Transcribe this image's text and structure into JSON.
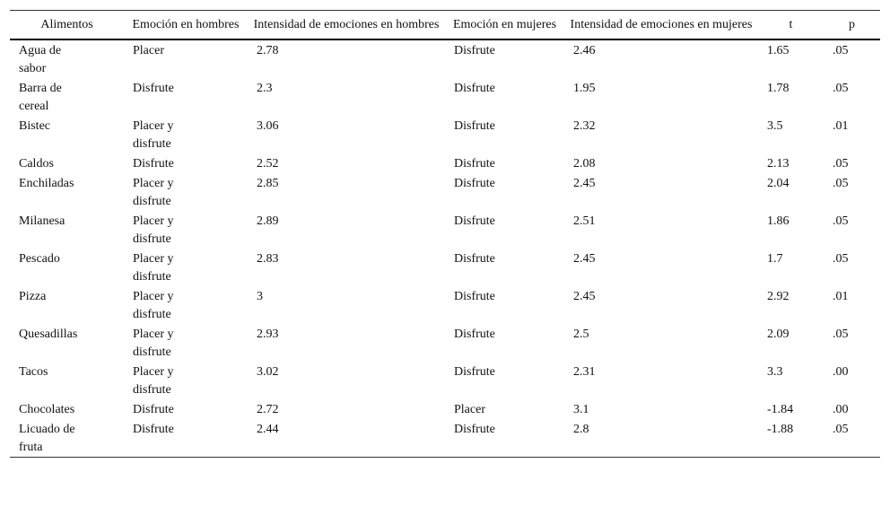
{
  "table": {
    "header": [
      "Alimentos",
      "Emoción en hombres",
      "Intensidad de emociones en hombres",
      "Emoción en mujeres",
      "Intensidad de emociones en mujeres",
      "t",
      "p"
    ],
    "rows": [
      [
        "Agua de sabor",
        "Placer",
        "2.78",
        "Disfrute",
        "2.46",
        "1.65",
        ".05"
      ],
      [
        "Barra de cereal",
        "Disfrute",
        "2.3",
        "Disfrute",
        "1.95",
        "1.78",
        ".05"
      ],
      [
        "Bistec",
        "Placer y disfrute",
        "3.06",
        "Disfrute",
        "2.32",
        "3.5",
        ".01"
      ],
      [
        "Caldos",
        "Disfrute",
        "2.52",
        "Disfrute",
        "2.08",
        "2.13",
        ".05"
      ],
      [
        "Enchiladas",
        "Placer y disfrute",
        "2.85",
        "Disfrute",
        "2.45",
        "2.04",
        ".05"
      ],
      [
        "Milanesa",
        "Placer y disfrute",
        "2.89",
        "Disfrute",
        "2.51",
        "1.86",
        ".05"
      ],
      [
        "Pescado",
        "Placer y disfrute",
        "2.83",
        "Disfrute",
        "2.45",
        "1.7",
        ".05"
      ],
      [
        "Pizza",
        "Placer y disfrute",
        "3",
        "Disfrute",
        "2.45",
        "2.92",
        ".01"
      ],
      [
        "Quesadillas",
        "Placer y disfrute",
        "2.93",
        "Disfrute",
        "2.5",
        "2.09",
        ".05"
      ],
      [
        "Tacos",
        "Placer y disfrute",
        "3.02",
        "Disfrute",
        "2.31",
        "3.3",
        ".00"
      ],
      [
        "Chocolates",
        "Disfrute",
        "2.72",
        "Placer",
        "3.1",
        "-1.84",
        ".00"
      ],
      [
        "Licuado de fruta",
        "Disfrute",
        "2.44",
        "Disfrute",
        "2.8",
        "-1.88",
        ".05"
      ]
    ]
  }
}
